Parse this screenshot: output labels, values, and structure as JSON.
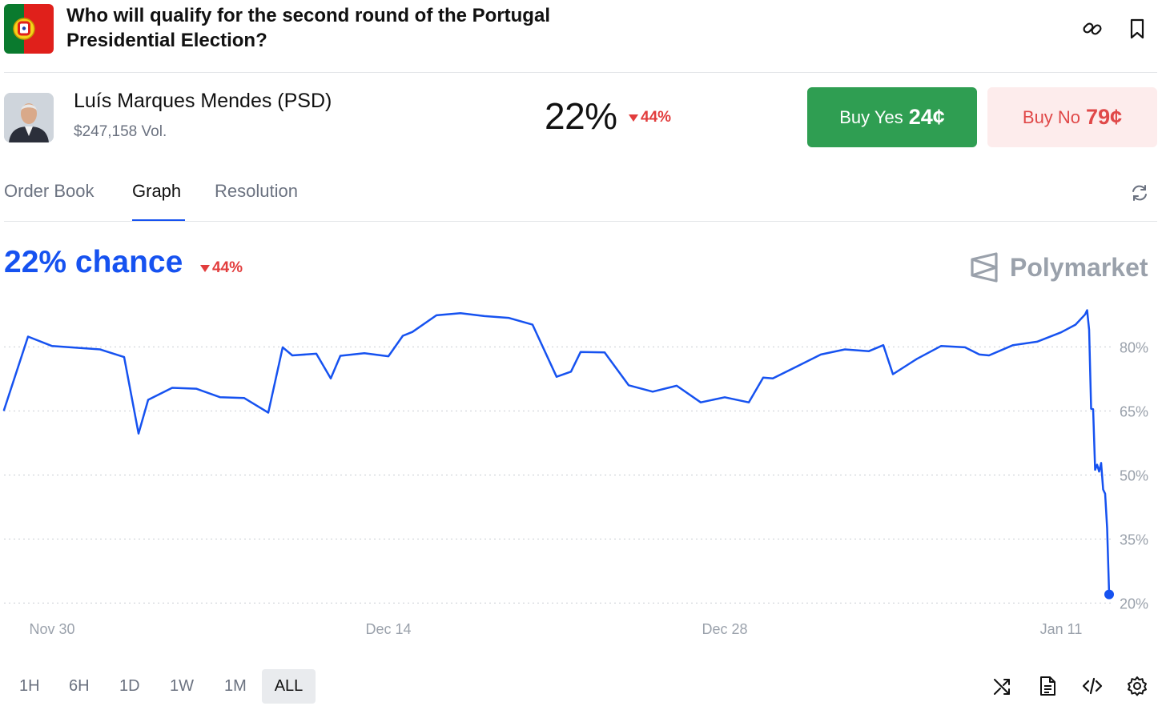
{
  "market": {
    "title": "Who will qualify for the second round of the Portugal Presidential Election?"
  },
  "outcome": {
    "name": "Luís Marques Mendes (PSD)",
    "volume": "$247,158 Vol.",
    "probability": "22%",
    "change": "44%",
    "buy_yes_label": "Buy Yes",
    "buy_yes_price": "24¢",
    "buy_no_label": "Buy No",
    "buy_no_price": "79¢"
  },
  "tabs": [
    "Order Book",
    "Graph",
    "Resolution"
  ],
  "active_tab": "Graph",
  "chart_header": {
    "chance": "22% chance",
    "change": "44%",
    "brand": "Polymarket"
  },
  "ranges": [
    "1H",
    "6H",
    "1D",
    "1W",
    "1M",
    "ALL"
  ],
  "active_range": "ALL",
  "icons": {
    "header": [
      "link-icon",
      "bookmark-icon"
    ],
    "refresh": "refresh-icon",
    "tools": [
      "shuffle-icon",
      "document-icon",
      "code-icon",
      "settings-icon"
    ]
  },
  "colors": {
    "line": "#1652f0",
    "yes": "#2f9e52",
    "no": "#e04848",
    "negative_change": "#e23d3d"
  },
  "chart_data": {
    "type": "line",
    "x_tick_labels": [
      "Nov 30",
      "Dec 14",
      "Dec 28",
      "Jan 11"
    ],
    "y_tick_labels": [
      "80%",
      "65%",
      "50%",
      "35%",
      "20%"
    ],
    "y_ticks": [
      80,
      65,
      50,
      35,
      20
    ],
    "ylim": [
      15,
      90
    ],
    "xlim": [
      "2025-11-28",
      "2026-01-13"
    ],
    "grid": "horizontal dotted",
    "series": [
      {
        "values": [
          [
            "2025-11-28",
            65.2
          ],
          [
            "2025-11-29",
            82.4
          ],
          [
            "2025-11-30",
            80.2
          ],
          [
            "2025-12-01",
            79.8
          ],
          [
            "2025-12-02",
            79.4
          ],
          [
            "2025-12-03",
            77.6
          ],
          [
            "2025-12-03",
            59.7
          ],
          [
            "2025-12-04",
            67.6
          ],
          [
            "2025-12-05",
            70.4
          ],
          [
            "2025-12-06",
            70.2
          ],
          [
            "2025-12-07",
            68.2
          ],
          [
            "2025-12-08",
            68.0
          ],
          [
            "2025-12-09",
            64.6
          ],
          [
            "2025-12-09",
            79.9
          ],
          [
            "2025-12-10",
            78.0
          ],
          [
            "2025-12-11",
            78.4
          ],
          [
            "2025-12-11",
            72.6
          ],
          [
            "2025-12-12",
            77.9
          ],
          [
            "2025-12-13",
            78.5
          ],
          [
            "2025-12-14",
            77.8
          ],
          [
            "2025-12-14",
            82.6
          ],
          [
            "2025-12-15",
            83.5
          ],
          [
            "2025-12-16",
            87.4
          ],
          [
            "2025-12-17",
            87.9
          ],
          [
            "2025-12-18",
            87.2
          ],
          [
            "2025-12-19",
            86.8
          ],
          [
            "2025-12-20",
            85.2
          ],
          [
            "2025-12-21",
            73.0
          ],
          [
            "2025-12-21",
            74.2
          ],
          [
            "2025-12-22",
            78.8
          ],
          [
            "2025-12-23",
            78.7
          ],
          [
            "2025-12-24",
            71.0
          ],
          [
            "2025-12-25",
            69.5
          ],
          [
            "2025-12-26",
            70.9
          ],
          [
            "2025-12-27",
            67.0
          ],
          [
            "2025-12-28",
            68.2
          ],
          [
            "2025-12-29",
            67.0
          ],
          [
            "2025-12-29",
            72.8
          ],
          [
            "2025-12-30",
            72.6
          ],
          [
            "2025-12-31",
            75.4
          ],
          [
            "2026-01-01",
            78.2
          ],
          [
            "2026-01-02",
            79.4
          ],
          [
            "2026-01-03",
            79.0
          ],
          [
            "2026-01-03",
            80.4
          ],
          [
            "2026-01-04",
            73.6
          ],
          [
            "2026-01-05",
            77.2
          ],
          [
            "2026-01-06",
            80.2
          ],
          [
            "2026-01-07",
            79.9
          ],
          [
            "2026-01-07",
            78.2
          ],
          [
            "2026-01-08",
            78.0
          ],
          [
            "2026-01-09",
            80.4
          ],
          [
            "2026-01-10",
            81.2
          ],
          [
            "2026-01-11",
            83.4
          ],
          [
            "2026-01-11",
            85.2
          ],
          [
            "2026-01-12",
            87.6
          ],
          [
            "2026-01-12",
            88.6
          ],
          [
            "2026-01-12",
            84.0
          ],
          [
            "2026-01-12",
            65.5
          ],
          [
            "2026-01-12",
            65.4
          ],
          [
            "2026-01-12",
            51.2
          ],
          [
            "2026-01-12",
            52.4
          ],
          [
            "2026-01-12",
            50.8
          ],
          [
            "2026-01-12",
            52.8
          ],
          [
            "2026-01-12",
            46.6
          ],
          [
            "2026-01-12",
            45.6
          ],
          [
            "2026-01-12",
            37.5
          ],
          [
            "2026-01-12",
            22.0
          ]
        ]
      }
    ]
  }
}
